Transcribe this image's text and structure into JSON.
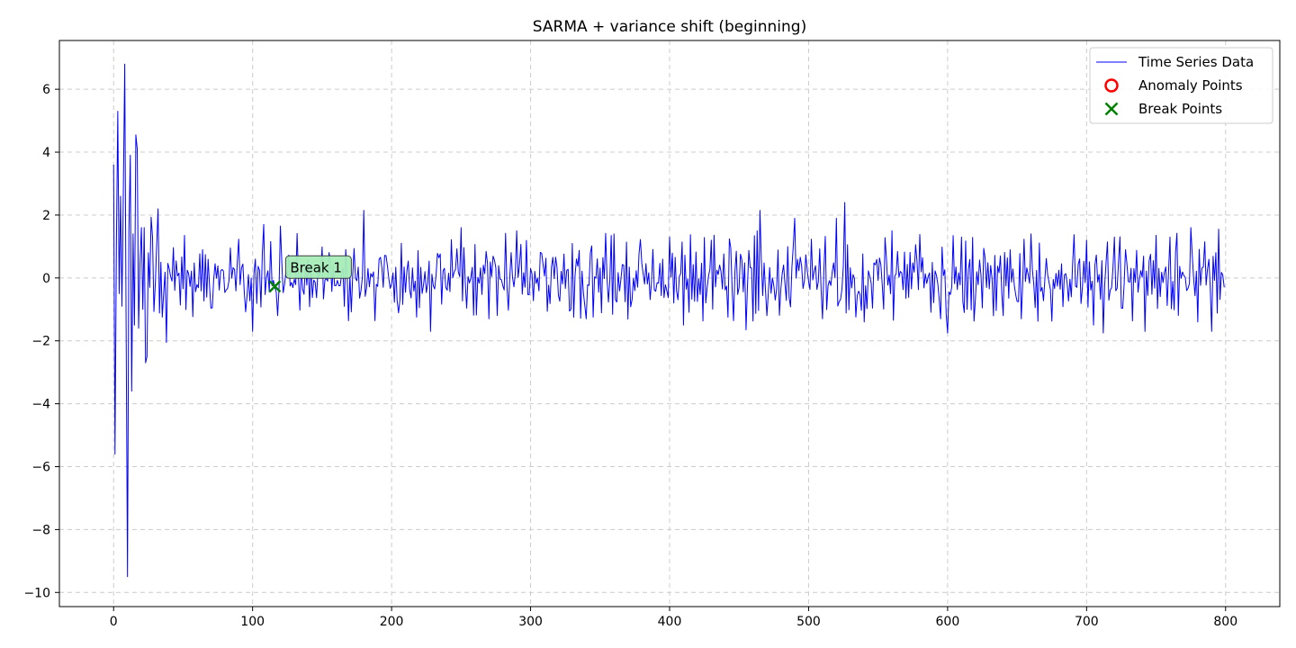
{
  "chart_data": {
    "type": "line",
    "title": "SARMA + variance shift (beginning)",
    "xlabel": "",
    "ylabel": "",
    "xlim": [
      -39,
      839
    ],
    "ylim": [
      -10.45,
      7.55
    ],
    "xticks": [
      0,
      100,
      200,
      300,
      400,
      500,
      600,
      700,
      800
    ],
    "xtick_labels": [
      "0",
      "100",
      "200",
      "300",
      "400",
      "500",
      "600",
      "700",
      "800"
    ],
    "yticks": [
      6,
      4,
      2,
      0,
      -2,
      -4,
      -6,
      -8,
      -10
    ],
    "ytick_labels": [
      "6",
      "4",
      "2",
      "0",
      "−2",
      "−4",
      "−6",
      "−8",
      "−10"
    ],
    "grid": true,
    "legend_position": "top-right",
    "colors": {
      "series": "#0000ff",
      "anomaly": "#ff0000",
      "break": "#008000",
      "annotation_fill": "#a8eeb8",
      "grid": "#cccccc"
    },
    "legend": [
      {
        "label": "Time Series Data",
        "marker": "line"
      },
      {
        "label": "Anomaly Points",
        "marker": "circle"
      },
      {
        "label": "Break Points",
        "marker": "x"
      }
    ],
    "series": [
      {
        "name": "Time Series Data",
        "anchors": [
          [
            0,
            3.6
          ],
          [
            1,
            -5.6
          ],
          [
            2,
            1.0
          ],
          [
            3,
            5.3
          ],
          [
            4,
            -0.5
          ],
          [
            5,
            2.6
          ],
          [
            6,
            -0.9
          ],
          [
            7,
            2.7
          ],
          [
            8,
            6.8
          ],
          [
            9,
            -1.5
          ],
          [
            10,
            -9.5
          ],
          [
            11,
            1.5
          ],
          [
            12,
            3.9
          ],
          [
            13,
            -3.6
          ],
          [
            14,
            1.4
          ],
          [
            15,
            -1.5
          ],
          [
            16,
            4.55
          ],
          [
            17,
            4.1
          ],
          [
            18,
            -1.6
          ],
          [
            19,
            0.5
          ],
          [
            20,
            1.6
          ],
          [
            21,
            -1.0
          ],
          [
            22,
            1.6
          ],
          [
            23,
            -2.7
          ],
          [
            24,
            -2.5
          ],
          [
            25,
            0.8
          ],
          [
            26,
            -0.3
          ],
          [
            28,
            1.3
          ],
          [
            30,
            -0.2
          ],
          [
            32,
            2.2
          ],
          [
            34,
            0.5
          ],
          [
            36,
            -0.5
          ],
          [
            38,
            -2.05
          ],
          [
            40,
            0.3
          ],
          [
            100,
            -1.7
          ],
          [
            102,
            0.6
          ],
          [
            108,
            1.7
          ],
          [
            114,
            -0.25
          ],
          [
            116,
            -0.3
          ],
          [
            118,
            -1.2
          ],
          [
            120,
            1.65
          ],
          [
            180,
            2.15
          ],
          [
            228,
            -1.7
          ],
          [
            250,
            1.6
          ],
          [
            270,
            -1.3
          ],
          [
            290,
            1.5
          ],
          [
            300,
            0.3
          ],
          [
            340,
            -1.3
          ],
          [
            360,
            1.4
          ],
          [
            400,
            1.3
          ],
          [
            410,
            -1.5
          ],
          [
            430,
            1.2
          ],
          [
            455,
            -1.65
          ],
          [
            465,
            2.15
          ],
          [
            470,
            -1.2
          ],
          [
            490,
            1.9
          ],
          [
            510,
            -1.3
          ],
          [
            520,
            1.9
          ],
          [
            526,
            2.4
          ],
          [
            540,
            -1.4
          ],
          [
            560,
            1.5
          ],
          [
            595,
            -1.3
          ],
          [
            600,
            -1.75
          ],
          [
            610,
            1.3
          ],
          [
            640,
            -1.2
          ],
          [
            660,
            1.4
          ],
          [
            700,
            1.2
          ],
          [
            705,
            -1.5
          ],
          [
            712,
            -1.75
          ],
          [
            720,
            1.3
          ],
          [
            742,
            -1.7
          ],
          [
            760,
            1.3
          ],
          [
            775,
            1.6
          ],
          [
            780,
            -1.4
          ],
          [
            785,
            1.15
          ],
          [
            790,
            -1.7
          ],
          [
            795,
            1.55
          ],
          [
            799,
            -0.3
          ]
        ]
      }
    ],
    "anomaly_points": [],
    "break_points": [
      {
        "x": 116,
        "y": -0.27,
        "label": "Break 1"
      }
    ]
  }
}
